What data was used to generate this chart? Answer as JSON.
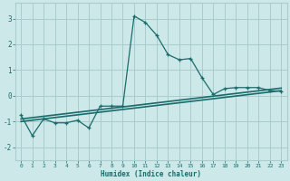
{
  "xlabel": "Humidex (Indice chaleur)",
  "bg_color": "#cce8e8",
  "grid_color": "#aacccc",
  "line_color": "#1a6b6b",
  "xlim": [
    -0.5,
    23.5
  ],
  "ylim": [
    -2.5,
    3.6
  ],
  "xticks": [
    0,
    1,
    2,
    3,
    4,
    5,
    6,
    7,
    8,
    9,
    10,
    11,
    12,
    13,
    14,
    15,
    16,
    17,
    18,
    19,
    20,
    21,
    22,
    23
  ],
  "yticks": [
    -2,
    -1,
    0,
    1,
    2,
    3
  ],
  "main_x": [
    0,
    1,
    2,
    3,
    4,
    5,
    6,
    7,
    8,
    9,
    10,
    11,
    12,
    13,
    14,
    15,
    16,
    17,
    18,
    19,
    20,
    21,
    22,
    23
  ],
  "main_y": [
    -0.75,
    -1.55,
    -0.9,
    -1.05,
    -1.05,
    -0.95,
    -1.25,
    -0.4,
    -0.4,
    -0.4,
    3.1,
    2.85,
    2.35,
    1.6,
    1.4,
    1.45,
    0.7,
    0.05,
    0.28,
    0.32,
    0.32,
    0.32,
    0.2,
    0.18
  ],
  "line2_x": [
    0,
    23
  ],
  "line2_y": [
    -0.9,
    0.3
  ],
  "line3_x": [
    0,
    23
  ],
  "line3_y": [
    -1.0,
    0.2
  ]
}
